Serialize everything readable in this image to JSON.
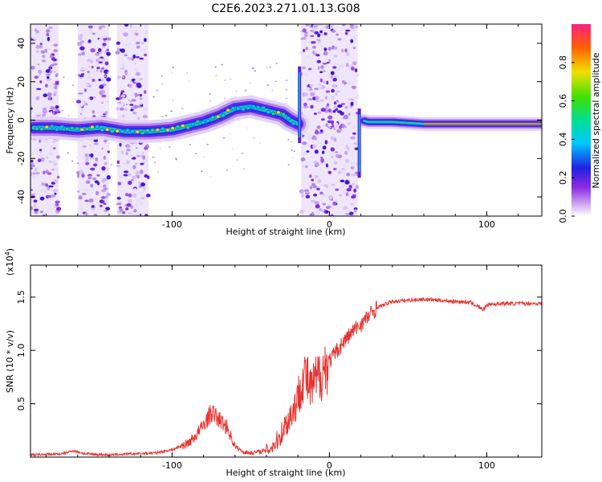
{
  "title": "C2E6.2023.271.01.13.G08",
  "chart_data": [
    {
      "type": "heatmap",
      "xlabel": "Height of straight line (km)",
      "ylabel": "Frequency (Hz)",
      "xlim": [
        -190,
        135
      ],
      "ylim": [
        -50,
        50
      ],
      "x_ticks": [
        "-100",
        "0",
        "100"
      ],
      "y_ticks": [
        "-40",
        "-20",
        "0",
        "20",
        "40"
      ],
      "x_tick_values": [
        -100,
        0,
        100
      ],
      "y_tick_values": [
        -40,
        -20,
        0,
        20,
        40
      ],
      "colorbar": {
        "label": "Normalized spectral amplitude",
        "ticks": [
          "0.0",
          "0.2",
          "0.4",
          "0.6",
          "0.8"
        ],
        "tick_values": [
          0.0,
          0.2,
          0.4,
          0.6,
          0.8
        ],
        "range": [
          0,
          1
        ]
      },
      "ridge": {
        "x": [
          -188,
          -175,
          -160,
          -145,
          -130,
          -115,
          -100,
          -90,
          -80,
          -70,
          -60,
          -50,
          -40,
          -30,
          -25,
          -20,
          20,
          25,
          40,
          60,
          80,
          100,
          120,
          135
        ],
        "freq": [
          -4,
          -4,
          -5,
          -4,
          -6,
          -6,
          -5,
          -3,
          -1,
          2,
          6,
          7,
          5,
          3,
          0,
          -2,
          0,
          -1,
          -1,
          -2,
          -2,
          -2,
          -2,
          -2
        ]
      }
    },
    {
      "type": "line",
      "xlabel": "Height of straight line (km)",
      "ylabel": "SNR (10 * v/v)",
      "scale_note": "(x10",
      "scale_exponent": "4",
      "xlim": [
        -190,
        135
      ],
      "ylim": [
        0,
        1.8
      ],
      "x_ticks": [
        "-100",
        "0",
        "100"
      ],
      "y_ticks": [
        "0.5",
        "1.0",
        "1.5"
      ],
      "x_tick_values": [
        -100,
        0,
        100
      ],
      "y_tick_values": [
        0.5,
        1.0,
        1.5
      ],
      "series": [
        {
          "color": "#e8322f",
          "x": [
            -190,
            -170,
            -163,
            -155,
            -140,
            -125,
            -110,
            -100,
            -90,
            -85,
            -80,
            -75,
            -70,
            -65,
            -60,
            -55,
            -50,
            -45,
            -40,
            -35,
            -32,
            -28,
            -25,
            -22,
            -20,
            -18,
            -16,
            -14,
            -12,
            -10,
            -5,
            0,
            5,
            10,
            15,
            20,
            25,
            30,
            40,
            50,
            60,
            70,
            80,
            90,
            98,
            100,
            110,
            120,
            135
          ],
          "y": [
            0.02,
            0.03,
            0.06,
            0.03,
            0.02,
            0.03,
            0.04,
            0.07,
            0.13,
            0.2,
            0.3,
            0.42,
            0.35,
            0.28,
            0.1,
            0.05,
            0.04,
            0.05,
            0.06,
            0.12,
            0.18,
            0.3,
            0.38,
            0.48,
            0.55,
            0.7,
            0.78,
            0.72,
            0.62,
            0.68,
            0.8,
            0.9,
            1.0,
            1.1,
            1.18,
            1.25,
            1.32,
            1.4,
            1.46,
            1.47,
            1.48,
            1.47,
            1.46,
            1.45,
            1.38,
            1.43,
            1.44,
            1.44,
            1.44
          ]
        }
      ]
    }
  ]
}
